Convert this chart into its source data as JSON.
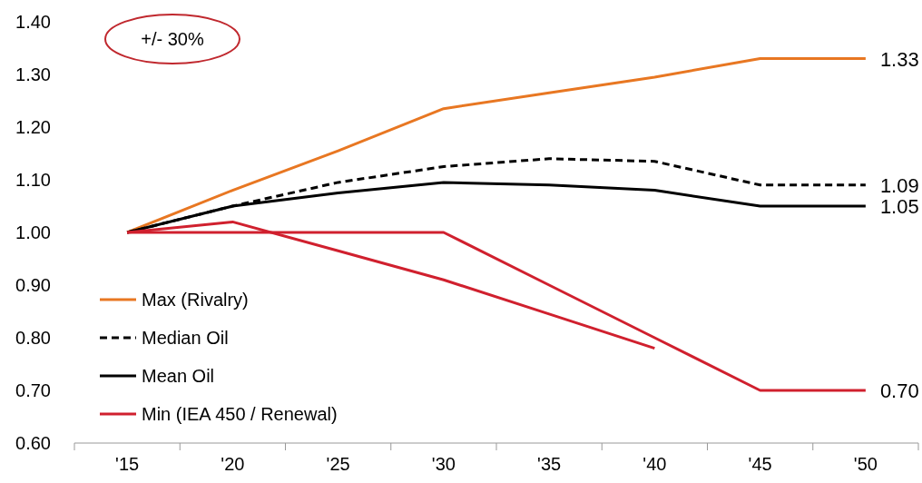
{
  "chart_data": {
    "type": "line",
    "categories": [
      "'15",
      "'20",
      "'25",
      "'30",
      "'35",
      "'40",
      "'45",
      "'50"
    ],
    "ylim": [
      0.6,
      1.4
    ],
    "yticks": [
      {
        "value": 0.6,
        "label": "0.60"
      },
      {
        "value": 0.7,
        "label": "0.70"
      },
      {
        "value": 0.8,
        "label": "0.80"
      },
      {
        "value": 0.9,
        "label": "0.90"
      },
      {
        "value": 1.0,
        "label": "1.00"
      },
      {
        "value": 1.1,
        "label": "1.10"
      },
      {
        "value": 1.2,
        "label": "1.20"
      },
      {
        "value": 1.3,
        "label": "1.30"
      },
      {
        "value": 1.4,
        "label": "1.40"
      }
    ],
    "series": [
      {
        "name": "Max (Rivalry)",
        "color": "#e87722",
        "values": [
          1.0,
          1.08,
          1.155,
          1.235,
          1.265,
          1.295,
          1.33,
          1.33
        ],
        "value_labels": [
          null,
          null,
          null,
          null,
          null,
          null,
          null,
          "1.33"
        ]
      },
      {
        "name": "Median Oil",
        "color": "#000000",
        "line_style": "dashed",
        "values": [
          1.0,
          1.05,
          1.095,
          1.125,
          1.14,
          1.135,
          1.09,
          1.09
        ],
        "value_labels": [
          null,
          null,
          null,
          null,
          null,
          null,
          null,
          "1.09"
        ]
      },
      {
        "name": "Mean Oil",
        "color": "#000000",
        "values": [
          1.0,
          1.05,
          1.075,
          1.095,
          1.09,
          1.08,
          1.05,
          1.05
        ],
        "value_labels": [
          null,
          null,
          null,
          null,
          null,
          null,
          null,
          "1.05"
        ]
      },
      {
        "name": "Min (IEA 450 / Renewal)",
        "color": "#d0202e",
        "values": [
          1.0,
          1.0,
          1.0,
          1.0,
          0.9,
          0.8,
          0.7,
          0.7
        ],
        "value_labels": [
          null,
          null,
          null,
          null,
          null,
          null,
          null,
          "0.70"
        ]
      },
      {
        "color": "#d0202e",
        "values": [
          1.0,
          1.02,
          0.965,
          0.91,
          0.845,
          0.78,
          null,
          null
        ]
      }
    ],
    "annotations": [
      "+/- 30%"
    ],
    "legend": "bottom left",
    "grid": false,
    "line_style": "solid",
    "marker": "none"
  }
}
